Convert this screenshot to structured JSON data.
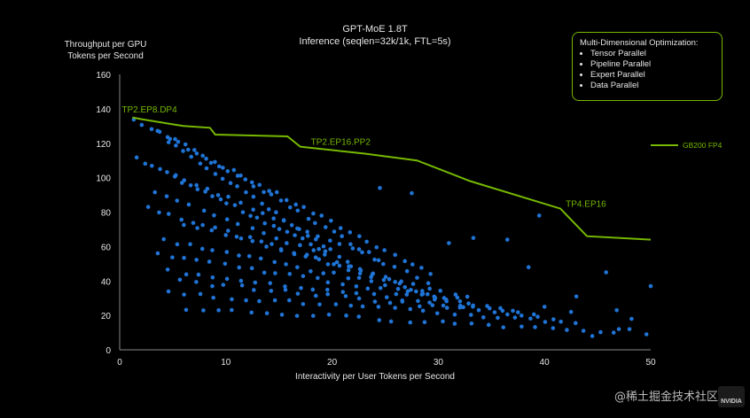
{
  "colors": {
    "background": "#000000",
    "accent": "#76b900",
    "points": "#1f74d6",
    "text": "#e6e6e6",
    "axis": "#888888"
  },
  "legend_box": {
    "title": "Multi-Dimensional Optimization:",
    "items": [
      "Tensor Parallel",
      "Pipeline Parallel",
      "Expert Parallel",
      "Data Parallel"
    ]
  },
  "watermark": {
    "text": "@稀土掘金技术社区",
    "logo": "NVIDIA"
  },
  "chart_data": {
    "type": "scatter",
    "title": "GPT-MoE 1.8T",
    "subtitle": "Inference (seqlen=32k/1k, FTL=5s)",
    "xlabel": "Interactivity per User Tokens per Second",
    "ylabel_line1": "Throughput per GPU",
    "ylabel_line2": "Tokens per Second",
    "xlim": [
      0,
      50
    ],
    "ylim": [
      0,
      160
    ],
    "xticks": [
      0,
      10,
      20,
      30,
      40,
      50
    ],
    "yticks": [
      0,
      20,
      40,
      60,
      80,
      100,
      120,
      140,
      160
    ],
    "grid": false,
    "legend_position": "right",
    "frontier": {
      "name": "GB200 FP4",
      "x": [
        1.2,
        2.0,
        5.0,
        6.0,
        8.5,
        9.0,
        15.8,
        17.0,
        20.0,
        23.0,
        28.0,
        33.0,
        41.5,
        44.0,
        50.0
      ],
      "y": [
        135,
        134,
        131,
        130,
        129,
        125,
        124,
        118,
        116,
        114,
        110,
        98,
        82,
        66,
        64
      ]
    },
    "annotations": [
      {
        "text": "TP2.EP8.DP4",
        "x": 0.2,
        "y": 138
      },
      {
        "text": "TP2.EP16.PP2",
        "x": 18.0,
        "y": 119
      },
      {
        "text": "TP4.EP16",
        "x": 42.0,
        "y": 83
      }
    ],
    "scatter_bands": [
      {
        "y0": 134,
        "x0": 1.2,
        "x1": 30,
        "slope": -3.2,
        "n": 34
      },
      {
        "y0": 128,
        "x0": 3.5,
        "x1": 25,
        "slope": -3.6,
        "n": 26
      },
      {
        "y0": 122,
        "x0": 4.5,
        "x1": 22,
        "slope": -4.2,
        "n": 24
      },
      {
        "y0": 111,
        "x0": 1.5,
        "x1": 20,
        "slope": -3.0,
        "n": 26
      },
      {
        "y0": 102,
        "x0": 5.0,
        "x1": 30,
        "slope": -2.6,
        "n": 24
      },
      {
        "y0": 92,
        "x0": 3.0,
        "x1": 33,
        "slope": -2.3,
        "n": 26
      },
      {
        "y0": 83,
        "x0": 2.5,
        "x1": 30,
        "slope": -1.9,
        "n": 26
      },
      {
        "y0": 73,
        "x0": 6.0,
        "x1": 34,
        "slope": -1.6,
        "n": 22
      },
      {
        "y0": 64,
        "x0": 4.0,
        "x1": 34,
        "slope": -1.25,
        "n": 26
      },
      {
        "y0": 56,
        "x0": 3.5,
        "x1": 38,
        "slope": -1.0,
        "n": 28
      },
      {
        "y0": 46,
        "x0": 4.5,
        "x1": 40,
        "slope": -0.75,
        "n": 26
      },
      {
        "y0": 40,
        "x0": 5.5,
        "x1": 42,
        "slope": -0.6,
        "n": 26
      },
      {
        "y0": 33,
        "x0": 4.5,
        "x1": 44,
        "slope": -0.45,
        "n": 28
      },
      {
        "y0": 24,
        "x0": 6.0,
        "x1": 48,
        "slope": -0.33,
        "n": 28
      }
    ],
    "extra_points": [
      {
        "x": 39.5,
        "y": 78
      },
      {
        "x": 45.8,
        "y": 45
      },
      {
        "x": 50.0,
        "y": 37
      },
      {
        "x": 46.8,
        "y": 23
      },
      {
        "x": 48.2,
        "y": 18
      },
      {
        "x": 47.0,
        "y": 12
      },
      {
        "x": 48.0,
        "y": 12
      },
      {
        "x": 49.6,
        "y": 9
      },
      {
        "x": 44.5,
        "y": 8
      },
      {
        "x": 36.5,
        "y": 64
      },
      {
        "x": 33.3,
        "y": 65
      },
      {
        "x": 31.0,
        "y": 62
      },
      {
        "x": 27.5,
        "y": 91
      },
      {
        "x": 24.5,
        "y": 94
      },
      {
        "x": 38.5,
        "y": 48
      },
      {
        "x": 42.5,
        "y": 22
      },
      {
        "x": 40.0,
        "y": 25
      },
      {
        "x": 43.0,
        "y": 31
      }
    ]
  }
}
